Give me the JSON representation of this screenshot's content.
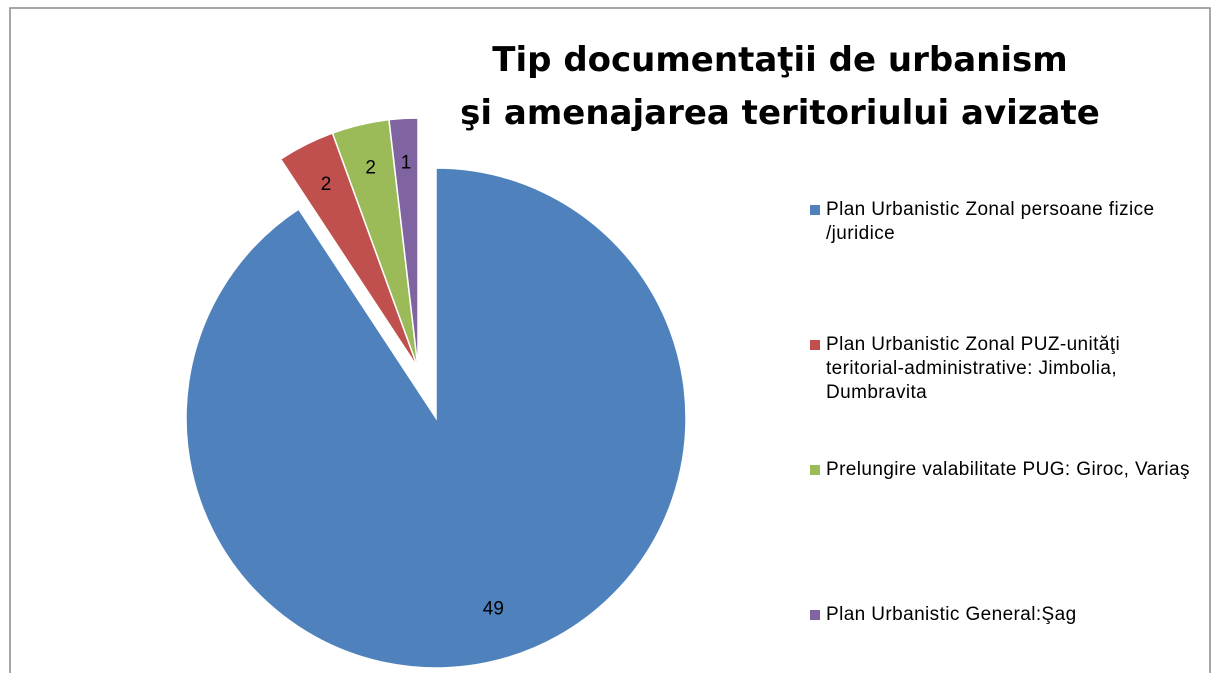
{
  "chart_data": {
    "type": "pie",
    "title": [
      "Tip documentaţii de urbanism",
      "şi amenajarea teritoriului avizate"
    ],
    "categories": [
      "Plan Urbanistic Zonal persoane fizice /juridice",
      "Plan Urbanistic Zonal PUZ-unităţi teritorial-administrative: Jimbolia, Dumbravita",
      "Prelungire valabilitate PUG: Giroc, Variaş",
      "Plan Urbanistic General:Şag"
    ],
    "values": [
      49,
      2,
      2,
      1
    ],
    "colors": [
      "#4f81bd",
      "#c0504d",
      "#9bbb59",
      "#8064a2"
    ],
    "legend": "right"
  }
}
